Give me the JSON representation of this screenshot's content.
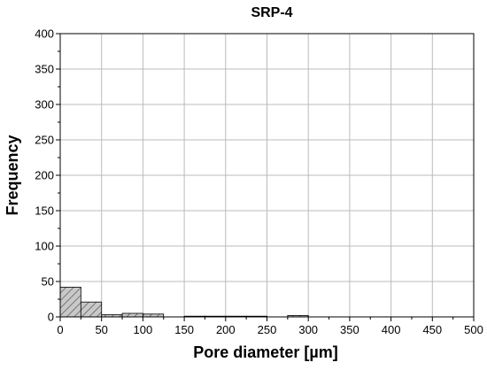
{
  "chart_data": {
    "type": "bar",
    "title": "SRP-4",
    "xlabel": "Pore diameter [µm]",
    "ylabel": "Frequency",
    "xlim": [
      0,
      500
    ],
    "ylim": [
      0,
      400
    ],
    "grid": true,
    "bin_width": 25,
    "bins": [
      {
        "x0": 0,
        "x1": 25,
        "value": 42
      },
      {
        "x0": 25,
        "x1": 50,
        "value": 21
      },
      {
        "x0": 50,
        "x1": 75,
        "value": 3
      },
      {
        "x0": 75,
        "x1": 100,
        "value": 5
      },
      {
        "x0": 100,
        "x1": 125,
        "value": 4
      },
      {
        "x0": 125,
        "x1": 150,
        "value": 0
      },
      {
        "x0": 150,
        "x1": 175,
        "value": 1
      },
      {
        "x0": 175,
        "x1": 200,
        "value": 1
      },
      {
        "x0": 200,
        "x1": 225,
        "value": 1
      },
      {
        "x0": 225,
        "x1": 250,
        "value": 1
      },
      {
        "x0": 250,
        "x1": 275,
        "value": 0
      },
      {
        "x0": 275,
        "x1": 300,
        "value": 2
      }
    ],
    "x_ticks": [
      "0",
      "50",
      "100",
      "150",
      "200",
      "250",
      "300",
      "350",
      "400",
      "450",
      "500"
    ],
    "y_ticks": [
      "0",
      "50",
      "100",
      "150",
      "200",
      "250",
      "300",
      "350",
      "400"
    ],
    "bar_fill": "#c8c8c8",
    "hatch_color": "#444444",
    "grid_color": "#bbbbbb"
  }
}
